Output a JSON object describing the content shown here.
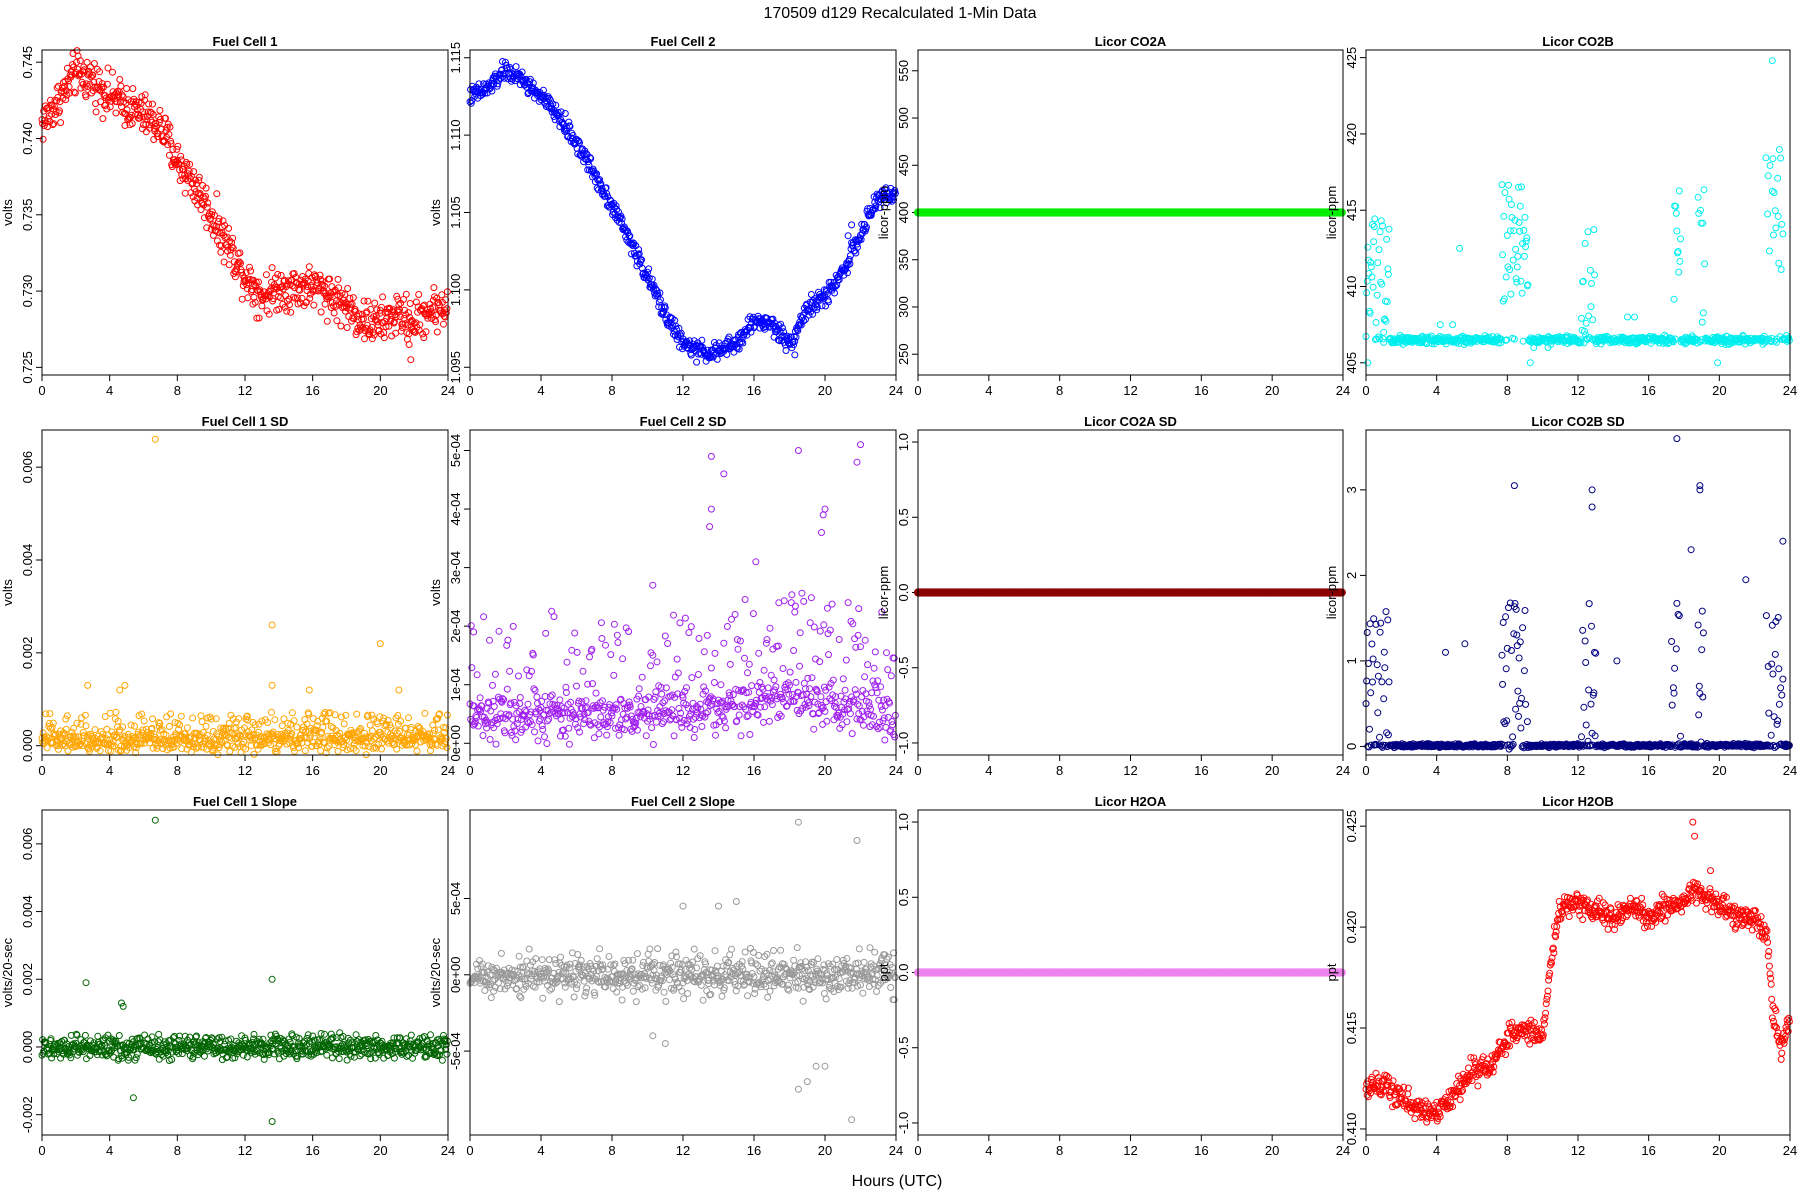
{
  "figure": {
    "title": "170509   d129   Recalculated 1-Min Data",
    "xlabel": "Hours (UTC)"
  },
  "chart_data": [
    {
      "id": "fc1",
      "type": "scatter",
      "title": "Fuel Cell 1",
      "ylabel": "volts",
      "color": "#ff0000",
      "xlim": [
        0,
        24
      ],
      "xticks": [
        0,
        4,
        8,
        12,
        16,
        20,
        24
      ],
      "ylim": [
        0.7245,
        0.7458
      ],
      "yticks": [
        0.725,
        0.73,
        0.735,
        0.74,
        0.745
      ],
      "ytick_labels": [
        "0.725",
        "0.730",
        "0.735",
        "0.740",
        "0.745"
      ],
      "curve": [
        [
          0,
          0.741
        ],
        [
          1,
          0.7425
        ],
        [
          2,
          0.7443
        ],
        [
          3,
          0.7438
        ],
        [
          4,
          0.7428
        ],
        [
          5,
          0.7422
        ],
        [
          6,
          0.7415
        ],
        [
          7,
          0.7408
        ],
        [
          8,
          0.7385
        ],
        [
          9,
          0.737
        ],
        [
          10,
          0.735
        ],
        [
          11,
          0.733
        ],
        [
          12,
          0.731
        ],
        [
          13,
          0.7297
        ],
        [
          14,
          0.7302
        ],
        [
          15,
          0.7302
        ],
        [
          16,
          0.7303
        ],
        [
          17,
          0.7298
        ],
        [
          18,
          0.729
        ],
        [
          19,
          0.728
        ],
        [
          20,
          0.7279
        ],
        [
          21,
          0.7285
        ],
        [
          22,
          0.728
        ],
        [
          23,
          0.7288
        ],
        [
          24,
          0.729
        ]
      ],
      "noise": 0.0007,
      "outliers": [
        [
          21.8,
          0.7255
        ],
        [
          21.7,
          0.7265
        ]
      ]
    },
    {
      "id": "fc2",
      "type": "scatter",
      "title": "Fuel Cell 2",
      "ylabel": "volts",
      "color": "#0000ff",
      "xlim": [
        0,
        24
      ],
      "xticks": [
        0,
        4,
        8,
        12,
        16,
        20,
        24
      ],
      "ylim": [
        1.0945,
        1.1155
      ],
      "yticks": [
        1.095,
        1.1,
        1.105,
        1.11,
        1.115
      ],
      "ytick_labels": [
        "1.095",
        "1.100",
        "1.105",
        "1.110",
        "1.115"
      ],
      "curve": [
        [
          0,
          1.1125
        ],
        [
          1,
          1.113
        ],
        [
          2,
          1.1142
        ],
        [
          3,
          1.1135
        ],
        [
          4,
          1.1125
        ],
        [
          5,
          1.1112
        ],
        [
          6,
          1.1095
        ],
        [
          7,
          1.1075
        ],
        [
          8,
          1.1055
        ],
        [
          9,
          1.1032
        ],
        [
          10,
          1.1008
        ],
        [
          11,
          1.0985
        ],
        [
          12,
          1.0965
        ],
        [
          13,
          1.096
        ],
        [
          14,
          1.096
        ],
        [
          15,
          1.0965
        ],
        [
          16,
          1.098
        ],
        [
          17,
          1.0978
        ],
        [
          18,
          1.0965
        ],
        [
          19,
          1.0988
        ],
        [
          20,
          1.0995
        ],
        [
          21,
          1.1012
        ],
        [
          22,
          1.1035
        ],
        [
          23,
          1.106
        ],
        [
          24,
          1.1062
        ]
      ],
      "noise": 0.0003,
      "outliers": [
        [
          18.3,
          1.0958
        ],
        [
          21.3,
          1.1035
        ],
        [
          21.5,
          1.1042
        ]
      ]
    },
    {
      "id": "co2a",
      "type": "scatter",
      "title": "Licor CO2A",
      "ylabel": "licor-ppm",
      "color": "#00ee00",
      "xlim": [
        0,
        24
      ],
      "xticks": [
        0,
        4,
        8,
        12,
        16,
        20,
        24
      ],
      "ylim": [
        228,
        572
      ],
      "yticks": [
        250,
        300,
        350,
        400,
        450,
        500,
        550
      ],
      "ytick_labels": [
        "250",
        "300",
        "350",
        "400",
        "450",
        "500",
        "550"
      ],
      "curve": [
        [
          0,
          400
        ],
        [
          24,
          400
        ]
      ],
      "noise": 0,
      "outliers": []
    },
    {
      "id": "co2b",
      "type": "scatter",
      "title": "Licor CO2B",
      "ylabel": "licor-ppm",
      "color": "#00eeee",
      "xlim": [
        0,
        24
      ],
      "xticks": [
        0,
        4,
        8,
        12,
        16,
        20,
        24
      ],
      "ylim": [
        404.2,
        425.5
      ],
      "yticks": [
        405,
        410,
        415,
        420,
        425
      ],
      "ytick_labels": [
        "405",
        "410",
        "415",
        "420",
        "425"
      ],
      "curve": [
        [
          0,
          406.5
        ],
        [
          24,
          406.5
        ]
      ],
      "noise": 0.12,
      "bursts": [
        [
          0,
          1.3,
          411,
          3.5
        ],
        [
          7.7,
          9.2,
          413,
          4
        ],
        [
          12.2,
          13,
          410,
          4
        ],
        [
          17.3,
          17.8,
          413,
          4
        ],
        [
          18.8,
          19.2,
          412,
          5
        ],
        [
          22.6,
          23.6,
          415,
          4
        ]
      ],
      "outliers": [
        [
          0.1,
          405
        ],
        [
          1.0,
          407
        ],
        [
          4.2,
          407.5
        ],
        [
          4.9,
          407.5
        ],
        [
          5.3,
          412.5
        ],
        [
          9.3,
          405
        ],
        [
          9.5,
          406
        ],
        [
          10.3,
          406
        ],
        [
          14.8,
          408
        ],
        [
          15.2,
          408
        ],
        [
          19.9,
          405
        ],
        [
          23.0,
          424.8
        ]
      ]
    },
    {
      "id": "fc1sd",
      "type": "scatter",
      "title": "Fuel Cell 1 SD",
      "ylabel": "volts",
      "color": "#ffa500",
      "xlim": [
        0,
        24
      ],
      "xticks": [
        0,
        4,
        8,
        12,
        16,
        20,
        24
      ],
      "ylim": [
        -0.0002,
        0.0068
      ],
      "yticks": [
        0,
        0.002,
        0.004,
        0.006
      ],
      "ytick_labels": [
        "0.000",
        "0.002",
        "0.004",
        "0.006"
      ],
      "curve": [
        [
          0,
          0.00012
        ],
        [
          24,
          0.00012
        ]
      ],
      "noise": 0.00012,
      "spread": 0.0003,
      "outliers": [
        [
          6.7,
          0.0066
        ],
        [
          13.6,
          0.0026
        ],
        [
          20.0,
          0.0022
        ],
        [
          2.7,
          0.0013
        ],
        [
          4.9,
          0.0013
        ],
        [
          4.6,
          0.0012
        ],
        [
          13.6,
          0.0013
        ],
        [
          15.8,
          0.0012
        ],
        [
          21.1,
          0.0012
        ]
      ]
    },
    {
      "id": "fc2sd",
      "type": "scatter",
      "title": "Fuel Cell 2 SD",
      "ylabel": "volts",
      "color": "#a020f0",
      "xlim": [
        0,
        24
      ],
      "xticks": [
        0,
        4,
        8,
        12,
        16,
        20,
        24
      ],
      "ylim": [
        -2e-05,
        0.000535
      ],
      "yticks": [
        0,
        0.0001,
        0.0002,
        0.0003,
        0.0004,
        0.0005
      ],
      "ytick_labels": [
        "0e+00",
        "1e-04",
        "2e-04",
        "3e-04",
        "4e-04",
        "5e-04"
      ],
      "curve": [
        [
          0,
          5e-05
        ],
        [
          10,
          4e-05
        ],
        [
          18,
          8e-05
        ],
        [
          20,
          7e-05
        ],
        [
          24,
          4e-05
        ]
      ],
      "noise": 2e-05,
      "spread": 9e-05,
      "outliers": [
        [
          0.2,
          0.00019
        ],
        [
          10.3,
          0.00027
        ],
        [
          13.6,
          0.00049
        ],
        [
          13.6,
          0.0004
        ],
        [
          13.5,
          0.00037
        ],
        [
          14.3,
          0.00046
        ],
        [
          16.1,
          0.00031
        ],
        [
          18.5,
          0.0005
        ],
        [
          19.9,
          0.00039
        ],
        [
          20.0,
          0.0004
        ],
        [
          19.8,
          0.00036
        ],
        [
          21.8,
          0.00048
        ],
        [
          22.0,
          0.00051
        ],
        [
          21.9,
          0.00023
        ]
      ]
    },
    {
      "id": "co2asd",
      "type": "scatter",
      "title": "Licor CO2A SD",
      "ylabel": "licor-ppm",
      "color": "#8b0000",
      "xlim": [
        0,
        24
      ],
      "xticks": [
        0,
        4,
        8,
        12,
        16,
        20,
        24
      ],
      "ylim": [
        -1.08,
        1.08
      ],
      "yticks": [
        -1,
        -0.5,
        0,
        0.5,
        1
      ],
      "ytick_labels": [
        "-1.0",
        "-0.5",
        "0.0",
        "0.5",
        "1.0"
      ],
      "curve": [
        [
          0,
          0
        ],
        [
          24,
          0
        ]
      ],
      "noise": 0,
      "outliers": []
    },
    {
      "id": "co2bsd",
      "type": "scatter",
      "title": "Licor CO2B SD",
      "ylabel": "licor-ppm",
      "color": "#000080",
      "xlim": [
        0,
        24
      ],
      "xticks": [
        0,
        4,
        8,
        12,
        16,
        20,
        24
      ],
      "ylim": [
        -0.1,
        3.7
      ],
      "yticks": [
        0,
        1,
        2,
        3
      ],
      "ytick_labels": [
        "0",
        "1",
        "2",
        "3"
      ],
      "curve": [
        [
          0,
          0.01
        ],
        [
          24,
          0.01
        ]
      ],
      "noise": 0.01,
      "bursts": [
        [
          0,
          1.3,
          0.8,
          0.9
        ],
        [
          7.7,
          9.2,
          0.9,
          1
        ],
        [
          12.2,
          13,
          0.8,
          1
        ],
        [
          17.3,
          17.8,
          0.8,
          1
        ],
        [
          18.8,
          19.2,
          0.8,
          1
        ],
        [
          22.6,
          23.6,
          0.9,
          0.8
        ]
      ],
      "outliers": [
        [
          17.6,
          3.6
        ],
        [
          8.4,
          3.05
        ],
        [
          12.8,
          3.0
        ],
        [
          12.8,
          2.8
        ],
        [
          18.9,
          3.05
        ],
        [
          18.9,
          3.0
        ],
        [
          18.4,
          2.3
        ],
        [
          23.6,
          2.4
        ],
        [
          21.5,
          1.95
        ],
        [
          4.5,
          1.1
        ],
        [
          5.6,
          1.2
        ],
        [
          14.2,
          1.0
        ]
      ]
    },
    {
      "id": "fc1sl",
      "type": "scatter",
      "title": "Fuel Cell 1 Slope",
      "ylabel": "volts/20-sec",
      "color": "#006400",
      "xlim": [
        0,
        24
      ],
      "xticks": [
        0,
        4,
        8,
        12,
        16,
        20,
        24
      ],
      "ylim": [
        -0.0026,
        0.007
      ],
      "yticks": [
        -0.002,
        0,
        0.002,
        0.004,
        0.006
      ],
      "ytick_labels": [
        "-0.002",
        "0.000",
        "0.002",
        "0.004",
        "0.006"
      ],
      "curve": [
        [
          0,
          0
        ],
        [
          24,
          0
        ]
      ],
      "noise": 0.00015,
      "spread": 0.0004,
      "outliers": [
        [
          6.7,
          0.0067
        ],
        [
          13.6,
          0.002
        ],
        [
          2.6,
          0.0019
        ],
        [
          4.7,
          0.0013
        ],
        [
          4.8,
          0.0012
        ],
        [
          13.6,
          -0.0022
        ],
        [
          5.4,
          -0.0015
        ]
      ]
    },
    {
      "id": "fc2sl",
      "type": "scatter",
      "title": "Fuel Cell 2 Slope",
      "ylabel": "volts/20-sec",
      "color": "#999999",
      "xlim": [
        0,
        24
      ],
      "xticks": [
        0,
        4,
        8,
        12,
        16,
        20,
        24
      ],
      "ylim": [
        -0.00105,
        0.00108
      ],
      "yticks": [
        -0.0005,
        0,
        0.0005
      ],
      "ytick_labels": [
        "-5e-04",
        "0e+00",
        "5e-04"
      ],
      "curve": [
        [
          0,
          0
        ],
        [
          24,
          0
        ]
      ],
      "noise": 5e-05,
      "spread": 0.00018,
      "outliers": [
        [
          18.5,
          0.001
        ],
        [
          21.8,
          0.00088
        ],
        [
          14.0,
          0.00045
        ],
        [
          15.0,
          0.00048
        ],
        [
          12.0,
          0.00045
        ],
        [
          10.3,
          -0.0004
        ],
        [
          11.0,
          -0.00045
        ],
        [
          19.0,
          -0.0007
        ],
        [
          19.5,
          -0.0006
        ],
        [
          20.0,
          -0.0006
        ],
        [
          21.5,
          -0.00095
        ],
        [
          18.5,
          -0.00075
        ]
      ]
    },
    {
      "id": "h2oa",
      "type": "scatter",
      "title": "Licor H2OA",
      "ylabel": "ppt",
      "color": "#ee82ee",
      "xlim": [
        0,
        24
      ],
      "xticks": [
        0,
        4,
        8,
        12,
        16,
        20,
        24
      ],
      "ylim": [
        -1.08,
        1.08
      ],
      "yticks": [
        -1,
        -0.5,
        0,
        0.5,
        1
      ],
      "ytick_labels": [
        "-1.0",
        "-0.5",
        "0.0",
        "0.5",
        "1.0"
      ],
      "curve": [
        [
          0,
          0
        ],
        [
          24,
          0
        ]
      ],
      "noise": 0,
      "outliers": []
    },
    {
      "id": "h2ob",
      "type": "scatter",
      "title": "Licor H2OB",
      "ylabel": "ppt",
      "color": "#ff0000",
      "xlim": [
        0,
        24
      ],
      "xticks": [
        0,
        4,
        8,
        12,
        16,
        20,
        24
      ],
      "ylim": [
        0.4097,
        0.4258
      ],
      "yticks": [
        0.41,
        0.415,
        0.42,
        0.425
      ],
      "ytick_labels": [
        "0.410",
        "0.415",
        "0.420",
        "0.425"
      ],
      "curve": [
        [
          0,
          0.412
        ],
        [
          1,
          0.4122
        ],
        [
          2,
          0.4115
        ],
        [
          3,
          0.411
        ],
        [
          4,
          0.4108
        ],
        [
          5,
          0.4118
        ],
        [
          6,
          0.4128
        ],
        [
          7,
          0.413
        ],
        [
          8,
          0.4145
        ],
        [
          9,
          0.415
        ],
        [
          10,
          0.4145
        ],
        [
          10.5,
          0.4185
        ],
        [
          11,
          0.421
        ],
        [
          12,
          0.4212
        ],
        [
          13,
          0.4208
        ],
        [
          14,
          0.4205
        ],
        [
          15,
          0.421
        ],
        [
          16,
          0.4205
        ],
        [
          17,
          0.421
        ],
        [
          18,
          0.4212
        ],
        [
          18.5,
          0.422
        ],
        [
          19,
          0.4215
        ],
        [
          20,
          0.4212
        ],
        [
          21,
          0.4205
        ],
        [
          22,
          0.4205
        ],
        [
          22.7,
          0.4195
        ],
        [
          23,
          0.416
        ],
        [
          23.5,
          0.414
        ],
        [
          24,
          0.4155
        ]
      ],
      "noise": 0.0003,
      "outliers": [
        [
          18.5,
          0.4252
        ],
        [
          18.6,
          0.4245
        ],
        [
          19.5,
          0.4228
        ]
      ]
    }
  ]
}
